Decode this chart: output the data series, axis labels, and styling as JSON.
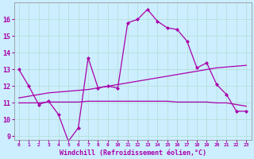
{
  "xlabel": "Windchill (Refroidissement éolien,°C)",
  "background_color": "#cceeff",
  "grid_color": "#b0ddd0",
  "line_color": "#aa00aa",
  "xlim": [
    -0.5,
    23.5
  ],
  "ylim": [
    8.8,
    17.0
  ],
  "xticks": [
    0,
    1,
    2,
    3,
    4,
    5,
    6,
    7,
    8,
    9,
    10,
    11,
    12,
    13,
    14,
    15,
    16,
    17,
    18,
    19,
    20,
    21,
    22,
    23
  ],
  "yticks": [
    9,
    10,
    11,
    12,
    13,
    14,
    15,
    16
  ],
  "line1_x": [
    0,
    1,
    2,
    3,
    4,
    5,
    6,
    7,
    8,
    9,
    10,
    11,
    12,
    13,
    14,
    15,
    16,
    17,
    18,
    19,
    20,
    21,
    22,
    23
  ],
  "line1_y": [
    13.0,
    12.0,
    10.9,
    11.1,
    10.3,
    8.7,
    9.5,
    13.7,
    11.9,
    12.0,
    11.9,
    15.8,
    16.0,
    16.6,
    15.9,
    15.5,
    15.4,
    14.7,
    13.1,
    13.4,
    12.1,
    11.5,
    10.5,
    10.5
  ],
  "line2_x": [
    0,
    1,
    2,
    3,
    4,
    5,
    6,
    7,
    8,
    9,
    10,
    11,
    12,
    13,
    14,
    15,
    16,
    17,
    18,
    19,
    20,
    21,
    22,
    23
  ],
  "line2_y": [
    11.0,
    11.0,
    11.0,
    11.05,
    11.05,
    11.05,
    11.05,
    11.1,
    11.1,
    11.1,
    11.1,
    11.1,
    11.1,
    11.1,
    11.1,
    11.1,
    11.05,
    11.05,
    11.05,
    11.05,
    11.0,
    11.0,
    10.9,
    10.8
  ],
  "line3_x": [
    0,
    1,
    2,
    3,
    4,
    5,
    6,
    7,
    8,
    9,
    10,
    11,
    12,
    13,
    14,
    15,
    16,
    17,
    18,
    19,
    20,
    21,
    22,
    23
  ],
  "line3_y": [
    11.3,
    11.4,
    11.5,
    11.6,
    11.65,
    11.7,
    11.75,
    11.8,
    11.9,
    12.0,
    12.1,
    12.2,
    12.3,
    12.4,
    12.5,
    12.6,
    12.7,
    12.8,
    12.9,
    13.0,
    13.1,
    13.15,
    13.2,
    13.25
  ]
}
